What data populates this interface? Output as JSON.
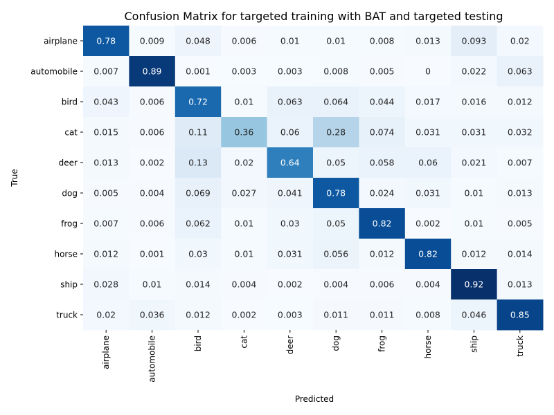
{
  "chart_data": {
    "type": "heatmap",
    "title": "Confusion Matrix for targeted training with BAT and targeted testing",
    "xlabel": "Predicted",
    "ylabel": "True",
    "x_categories": [
      "airplane",
      "automobile",
      "bird",
      "cat",
      "deer",
      "dog",
      "frog",
      "horse",
      "ship",
      "truck"
    ],
    "y_categories": [
      "airplane",
      "automobile",
      "bird",
      "cat",
      "deer",
      "dog",
      "frog",
      "horse",
      "ship",
      "truck"
    ],
    "values": [
      [
        0.78,
        0.009,
        0.048,
        0.006,
        0.01,
        0.01,
        0.008,
        0.013,
        0.093,
        0.02
      ],
      [
        0.007,
        0.89,
        0.001,
        0.003,
        0.003,
        0.008,
        0.005,
        0,
        0.022,
        0.063
      ],
      [
        0.043,
        0.006,
        0.72,
        0.01,
        0.063,
        0.064,
        0.044,
        0.017,
        0.016,
        0.012
      ],
      [
        0.015,
        0.006,
        0.11,
        0.36,
        0.06,
        0.28,
        0.074,
        0.031,
        0.031,
        0.032
      ],
      [
        0.013,
        0.002,
        0.13,
        0.02,
        0.64,
        0.05,
        0.058,
        0.06,
        0.021,
        0.007
      ],
      [
        0.005,
        0.004,
        0.069,
        0.027,
        0.041,
        0.78,
        0.024,
        0.031,
        0.01,
        0.013
      ],
      [
        0.007,
        0.006,
        0.062,
        0.01,
        0.03,
        0.05,
        0.82,
        0.002,
        0.01,
        0.005
      ],
      [
        0.012,
        0.001,
        0.03,
        0.01,
        0.031,
        0.056,
        0.012,
        0.82,
        0.012,
        0.014
      ],
      [
        0.028,
        0.01,
        0.014,
        0.004,
        0.002,
        0.004,
        0.006,
        0.004,
        0.92,
        0.013
      ],
      [
        0.02,
        0.036,
        0.012,
        0.002,
        0.003,
        0.011,
        0.011,
        0.008,
        0.046,
        0.85
      ]
    ],
    "colormap": [
      "#f7fbff",
      "#deebf7",
      "#c6dbef",
      "#9ecae1",
      "#6baed6",
      "#4292c6",
      "#2171b5",
      "#08519c",
      "#08306b"
    ],
    "value_range": [
      0,
      0.92
    ],
    "grid": false,
    "colorbar": false
  }
}
